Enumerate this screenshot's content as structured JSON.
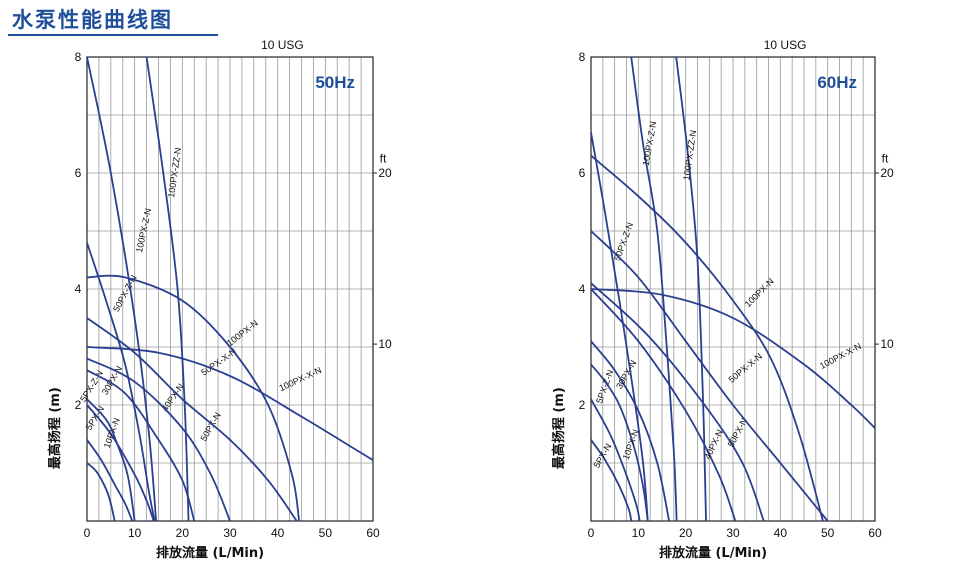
{
  "header": {
    "title": "水泵性能曲线图"
  },
  "colors": {
    "curve": "#2a3f8f",
    "grid": "#9a9a9a",
    "title": "#1f4f9a"
  },
  "chart_data": [
    {
      "type": "line",
      "frequency_label": "50Hz",
      "top_label": "10 USG",
      "xlabel": "排放流量 (L/Min)",
      "ylabel": "最高扬程 (m)",
      "secondary_unit": "ft",
      "xlim": [
        0,
        60
      ],
      "ylim": [
        0,
        8
      ],
      "xticks": [
        "0",
        "10",
        "20",
        "30",
        "40",
        "50",
        "60"
      ],
      "yticks": [
        "2",
        "4",
        "6",
        "8"
      ],
      "ft_ticks": [
        "10",
        "20"
      ],
      "grid": true,
      "series": [
        {
          "name": "5PX-N",
          "points": [
            [
              0,
              1.0
            ],
            [
              2,
              0.85
            ],
            [
              4,
              0.55
            ],
            [
              5,
              0.3
            ],
            [
              5.8,
              0
            ]
          ]
        },
        {
          "name": "5PX-Z-N",
          "points": [
            [
              0,
              1.4
            ],
            [
              3,
              1.05
            ],
            [
              6,
              0.6
            ],
            [
              8,
              0.3
            ],
            [
              9.5,
              0
            ]
          ]
        },
        {
          "name": "10PX-N",
          "points": [
            [
              0,
              2.0
            ],
            [
              5,
              1.5
            ],
            [
              10,
              0.8
            ],
            [
              12.5,
              0.35
            ],
            [
              14,
              0
            ]
          ]
        },
        {
          "name": "30PX-N",
          "points": [
            [
              0,
              2.1
            ],
            [
              4,
              1.75
            ],
            [
              6,
              1.4
            ],
            [
              8.5,
              0.8
            ],
            [
              10,
              0
            ]
          ]
        },
        {
          "name": "40PX-N",
          "points": [
            [
              0,
              2.6
            ],
            [
              8,
              2.2
            ],
            [
              15,
              1.4
            ],
            [
              20,
              0.7
            ],
            [
              22.5,
              0
            ]
          ]
        },
        {
          "name": "50PX-N",
          "points": [
            [
              0,
              2.8
            ],
            [
              10,
              2.4
            ],
            [
              20,
              1.6
            ],
            [
              26,
              0.8
            ],
            [
              30,
              0
            ]
          ]
        },
        {
          "name": "50PX-Z-N",
          "points": [
            [
              0,
              4.8
            ],
            [
              4,
              3.8
            ],
            [
              8,
              2.7
            ],
            [
              11,
              1.5
            ],
            [
              13,
              0.5
            ],
            [
              14.2,
              0
            ]
          ]
        },
        {
          "name": "50PX-X-N",
          "points": [
            [
              0,
              3.5
            ],
            [
              10,
              2.9
            ],
            [
              20,
              2.1
            ],
            [
              30,
              1.4
            ],
            [
              38,
              0.7
            ],
            [
              44,
              0
            ]
          ]
        },
        {
          "name": "100PX-Z-N",
          "points": [
            [
              0,
              8.0
            ],
            [
              5,
              6.0
            ],
            [
              10,
              3.5
            ],
            [
              13,
              1.5
            ],
            [
              14.5,
              0
            ]
          ]
        },
        {
          "name": "100PX-ZZ-N",
          "points": [
            [
              12.5,
              8.0
            ],
            [
              16,
              6.0
            ],
            [
              19,
              4.0
            ],
            [
              20.5,
              2.0
            ],
            [
              21.3,
              0
            ]
          ]
        },
        {
          "name": "100PX-N",
          "points": [
            [
              0,
              4.2
            ],
            [
              8,
              4.2
            ],
            [
              20,
              3.8
            ],
            [
              30,
              3.0
            ],
            [
              38,
              2.0
            ],
            [
              43,
              0.8
            ],
            [
              44.5,
              0
            ]
          ]
        },
        {
          "name": "100PX-X-N",
          "points": [
            [
              0,
              3.0
            ],
            [
              15,
              2.9
            ],
            [
              30,
              2.5
            ],
            [
              45,
              1.8
            ],
            [
              55,
              1.3
            ],
            [
              60,
              1.05
            ]
          ]
        }
      ]
    },
    {
      "type": "line",
      "frequency_label": "60Hz",
      "top_label": "10 USG",
      "xlabel": "排放流量 (L/Min)",
      "ylabel": "最高扬程 (m)",
      "secondary_unit": "ft",
      "xlim": [
        0,
        60
      ],
      "ylim": [
        0,
        8
      ],
      "xticks": [
        "0",
        "10",
        "20",
        "30",
        "40",
        "50",
        "60"
      ],
      "yticks": [
        "2",
        "4",
        "6",
        "8"
      ],
      "ft_ticks": [
        "10",
        "20"
      ],
      "grid": true,
      "series": [
        {
          "name": "5PX-N",
          "points": [
            [
              0,
              1.4
            ],
            [
              3,
              1.05
            ],
            [
              6,
              0.6
            ],
            [
              8,
              0.2
            ],
            [
              8.5,
              0
            ]
          ]
        },
        {
          "name": "5PX-Z-N",
          "points": [
            [
              0,
              2.1
            ],
            [
              4,
              1.5
            ],
            [
              7,
              0.9
            ],
            [
              9.5,
              0.3
            ],
            [
              10.3,
              0
            ]
          ]
        },
        {
          "name": "10PX-N",
          "points": [
            [
              0,
              2.7
            ],
            [
              3,
              2.4
            ],
            [
              6,
              2.0
            ],
            [
              9,
              1.3
            ],
            [
              11,
              0.6
            ],
            [
              12,
              0
            ]
          ]
        },
        {
          "name": "30PX-N",
          "points": [
            [
              0,
              3.1
            ],
            [
              5,
              2.6
            ],
            [
              10,
              1.9
            ],
            [
              14,
              1.0
            ],
            [
              16.5,
              0
            ]
          ]
        },
        {
          "name": "40PX-N",
          "points": [
            [
              0,
              4.0
            ],
            [
              10,
              3.1
            ],
            [
              20,
              1.9
            ],
            [
              27,
              0.8
            ],
            [
              30.5,
              0
            ]
          ]
        },
        {
          "name": "50PX-N",
          "points": [
            [
              0,
              4.1
            ],
            [
              12,
              3.2
            ],
            [
              24,
              2.0
            ],
            [
              32,
              1.0
            ],
            [
              36.5,
              0
            ]
          ]
        },
        {
          "name": "50PX-Z-N",
          "points": [
            [
              0,
              6.7
            ],
            [
              3,
              5.3
            ],
            [
              6,
              3.8
            ],
            [
              9,
              2.2
            ],
            [
              11,
              1.0
            ],
            [
              12,
              0
            ]
          ]
        },
        {
          "name": "50PX-X-N",
          "points": [
            [
              0,
              5.0
            ],
            [
              10,
              4.2
            ],
            [
              20,
              3.1
            ],
            [
              30,
              2.0
            ],
            [
              40,
              1.0
            ],
            [
              50,
              0
            ]
          ]
        },
        {
          "name": "100PX-Z-N",
          "points": [
            [
              8.5,
              8.0
            ],
            [
              11,
              6.5
            ],
            [
              14,
              5.0
            ],
            [
              16,
              3.0
            ],
            [
              17.5,
              1.2
            ],
            [
              18.1,
              0
            ]
          ]
        },
        {
          "name": "100PX-ZZ-N",
          "points": [
            [
              18,
              8.0
            ],
            [
              20.5,
              6.3
            ],
            [
              22.5,
              4.5
            ],
            [
              23.7,
              2.0
            ],
            [
              24.3,
              0
            ]
          ]
        },
        {
          "name": "100PX-N",
          "points": [
            [
              0,
              6.3
            ],
            [
              10,
              5.6
            ],
            [
              20,
              4.8
            ],
            [
              30,
              3.8
            ],
            [
              38,
              2.8
            ],
            [
              44,
              1.5
            ],
            [
              49,
              0
            ]
          ]
        },
        {
          "name": "100PX-X-N",
          "points": [
            [
              0,
              4.0
            ],
            [
              15,
              3.9
            ],
            [
              30,
              3.5
            ],
            [
              45,
              2.7
            ],
            [
              55,
              2.0
            ],
            [
              60,
              1.6
            ]
          ]
        }
      ]
    }
  ]
}
